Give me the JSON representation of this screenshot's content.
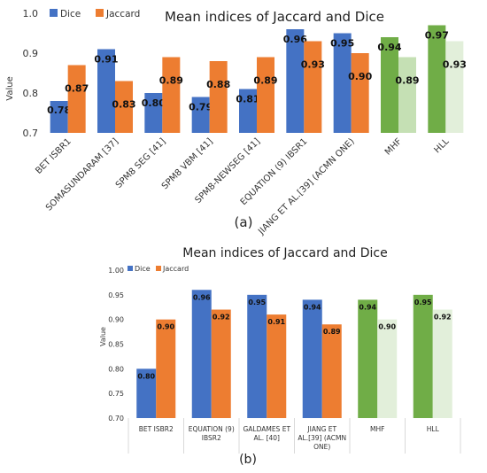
{
  "chart_data": [
    {
      "type": "bar",
      "title": "Mean indices of Jaccard and Dice",
      "caption": "(a)",
      "xlabel": "",
      "ylabel": "Value",
      "ylim": [
        0.7,
        1.0
      ],
      "yticks": [
        "0.7",
        "0.8",
        "0.9",
        "1.0"
      ],
      "legend_position": "top-left",
      "categories": [
        "BET ISBR1",
        "SOMASUNDARAM [37]",
        "SPM8 SEG [41]",
        "SPM8 VBM [41]",
        "SPM8-NEWSEG [41]",
        "EQUATION (9) IBSR1",
        "JIANG ET AL.[39] (ACMN ONE)",
        "MHF",
        "HLL"
      ],
      "series": [
        {
          "name": "Dice",
          "values": [
            0.78,
            0.91,
            0.8,
            0.79,
            0.81,
            0.96,
            0.95,
            0.94,
            0.97
          ],
          "labels": [
            "0.78",
            "0.91",
            "0.80",
            "0.79",
            "0.81",
            "0.96",
            "0.95",
            "0.94",
            "0.97"
          ],
          "color": "#4472C4"
        },
        {
          "name": "Jaccard",
          "values": [
            0.87,
            0.83,
            0.89,
            0.88,
            0.89,
            0.93,
            0.9,
            0.89,
            0.93
          ],
          "labels": [
            "0.87",
            "0.83",
            "0.89",
            "0.88",
            "0.89",
            "0.93",
            "0.90",
            "0.89",
            "0.93"
          ],
          "color": "#ED7D31"
        }
      ],
      "highlight_colors": {
        "dice": "#70AD47",
        "jaccard": "#E2EFDA",
        "jaccard_mhf": "#C5E0B4"
      }
    },
    {
      "type": "bar",
      "title": "Mean indices of Jaccard and Dice",
      "caption": "(b)",
      "xlabel": "",
      "ylabel": "Value",
      "ylim": [
        0.7,
        1.0
      ],
      "yticks": [
        "0.70",
        "0.75",
        "0.80",
        "0.85",
        "0.90",
        "0.95",
        "1.00"
      ],
      "legend_position": "top-left",
      "categories": [
        [
          "BET ISBR2"
        ],
        [
          "EQUATION (9)",
          "IBSR2"
        ],
        [
          "GALDAMES ET",
          "AL. [40]"
        ],
        [
          "JIANG ET",
          "AL.[39] (ACMN",
          "ONE)"
        ],
        [
          "MHF"
        ],
        [
          "HLL"
        ]
      ],
      "series": [
        {
          "name": "Dice",
          "values": [
            0.8,
            0.96,
            0.95,
            0.94,
            0.94,
            0.95
          ],
          "labels": [
            "0.80",
            "0.96",
            "0.95",
            "0.94",
            "0.94",
            "0.95"
          ],
          "color": "#4472C4"
        },
        {
          "name": "Jaccard",
          "values": [
            0.9,
            0.92,
            0.91,
            0.89,
            0.9,
            0.92
          ],
          "labels": [
            "0.90",
            "0.92",
            "0.91",
            "0.89",
            "0.90",
            "0.92"
          ],
          "color": "#ED7D31"
        }
      ],
      "highlight_colors": {
        "dice": "#70AD47",
        "jaccard": "#E2EFDA"
      }
    }
  ]
}
